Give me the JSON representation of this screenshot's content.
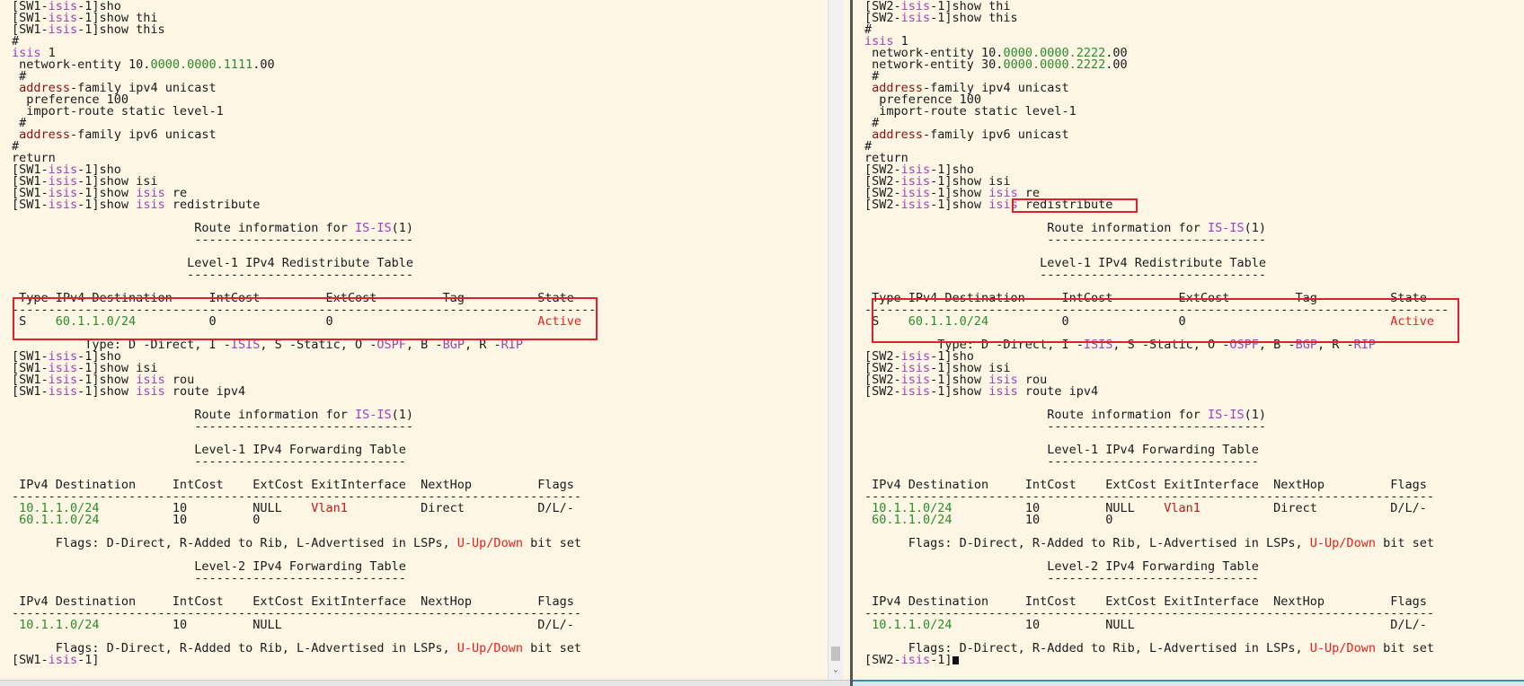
{
  "panes": [
    {
      "lines": [
        [
          "[SW1-",
          {
            "text": "isis",
            "color": "#9b44b8"
          },
          "-1]sho"
        ],
        [
          "[SW1-",
          {
            "text": "isis",
            "color": "#9b44b8"
          },
          "-1]show thi"
        ],
        [
          "[SW1-",
          {
            "text": "isis",
            "color": "#9b44b8"
          },
          "-1]show this"
        ],
        [
          "#"
        ],
        [
          {
            "text": "isis",
            "color": "#9b44b8"
          },
          " 1"
        ],
        [
          " network-entity 10.",
          {
            "text": "0000.0000.1111",
            "color": "#2a8c2a"
          },
          ".00"
        ],
        [
          " #"
        ],
        [
          " ",
          {
            "text": "address",
            "color": "#8b1010"
          },
          "-family ipv4 unicast"
        ],
        [
          "  preference 100"
        ],
        [
          "  import-route static level-1"
        ],
        [
          " #"
        ],
        [
          " ",
          {
            "text": "address",
            "color": "#8b1010"
          },
          "-family ipv6 unicast"
        ],
        [
          "#"
        ],
        [
          "return"
        ],
        [
          "[SW1-",
          {
            "text": "isis",
            "color": "#9b44b8"
          },
          "-1]sho"
        ],
        [
          "[SW1-",
          {
            "text": "isis",
            "color": "#9b44b8"
          },
          "-1]show isi"
        ],
        [
          "[SW1-",
          {
            "text": "isis",
            "color": "#9b44b8"
          },
          "-1]show ",
          {
            "text": "isis",
            "color": "#9b44b8"
          },
          " re"
        ],
        [
          "[SW1-",
          {
            "text": "isis",
            "color": "#9b44b8"
          },
          "-1]show ",
          {
            "text": "isis",
            "color": "#9b44b8"
          },
          " redistribute"
        ],
        [],
        [
          "                         Route information for ",
          {
            "text": "IS-IS",
            "color": "#9b44b8"
          },
          "(1)"
        ],
        [
          "                         ------------------------------"
        ],
        [],
        [
          "                        Level-1 IPv4 Redistribute Table"
        ],
        [
          "                        -------------------------------"
        ],
        [],
        [
          " Type IPv4 Destination     IntCost         ExtCost         Tag          State"
        ],
        [
          "--------------------------------------------------------------------------------"
        ],
        [
          " S    ",
          {
            "text": "60.1.1.0/24",
            "color": "#2a8c2a"
          },
          "          0               0                            ",
          {
            "text": "Active",
            "color": "#e8201c"
          }
        ],
        [],
        [
          "          Type: D -Direct, I -",
          {
            "text": "ISIS",
            "color": "#9b44b8"
          },
          ", S -Static, O -",
          {
            "text": "OSPF",
            "color": "#9b44b8"
          },
          ", B -",
          {
            "text": "BGP",
            "color": "#9b44b8"
          },
          ", R -",
          {
            "text": "RIP",
            "color": "#9b44b8"
          }
        ],
        [
          "[SW1-",
          {
            "text": "isis",
            "color": "#9b44b8"
          },
          "-1]sho"
        ],
        [
          "[SW1-",
          {
            "text": "isis",
            "color": "#9b44b8"
          },
          "-1]show isi"
        ],
        [
          "[SW1-",
          {
            "text": "isis",
            "color": "#9b44b8"
          },
          "-1]show ",
          {
            "text": "isis",
            "color": "#9b44b8"
          },
          " rou"
        ],
        [
          "[SW1-",
          {
            "text": "isis",
            "color": "#9b44b8"
          },
          "-1]show ",
          {
            "text": "isis",
            "color": "#9b44b8"
          },
          " route ipv4"
        ],
        [],
        [
          "                         Route information for ",
          {
            "text": "IS-IS",
            "color": "#9b44b8"
          },
          "(1)"
        ],
        [
          "                         ------------------------------"
        ],
        [],
        [
          "                         Level-1 IPv4 Forwarding Table"
        ],
        [
          "                         -----------------------------"
        ],
        [],
        [
          " IPv4 Destination     IntCost    ExtCost ExitInterface  NextHop         Flags"
        ],
        [
          "------------------------------------------------------------------------------"
        ],
        [
          " ",
          {
            "text": "10.1.1.0/24",
            "color": "#2a8c2a"
          },
          "          10         NULL    ",
          {
            "text": "Vlan1",
            "color": "#c01818"
          },
          "          Direct          D/L/-"
        ],
        [
          " ",
          {
            "text": "60.1.1.0/24",
            "color": "#2a8c2a"
          },
          "          10         0"
        ],
        [],
        [
          "      Flags: D-Direct, R-Added to Rib, L-Advertised in LSPs, ",
          {
            "text": "U-Up/Down",
            "color": "#e8201c"
          },
          " bit set"
        ],
        [],
        [
          "                         Level-2 IPv4 Forwarding Table"
        ],
        [
          "                         -----------------------------"
        ],
        [],
        [
          " IPv4 Destination     IntCost    ExtCost ExitInterface  NextHop         Flags"
        ],
        [
          "------------------------------------------------------------------------------"
        ],
        [
          " ",
          {
            "text": "10.1.1.0/24",
            "color": "#2a8c2a"
          },
          "          10         NULL                                   D/L/-"
        ],
        [],
        [
          "      Flags: D-Direct, R-Added to Rib, L-Advertised in LSPs, ",
          {
            "text": "U-Up/Down",
            "color": "#e8201c"
          },
          " bit set"
        ],
        [
          "[SW1-",
          {
            "text": "isis",
            "color": "#9b44b8"
          },
          "-1]"
        ]
      ]
    },
    {
      "lines": [
        [
          "[SW2-",
          {
            "text": "isis",
            "color": "#9b44b8"
          },
          "-1]show thi"
        ],
        [
          "[SW2-",
          {
            "text": "isis",
            "color": "#9b44b8"
          },
          "-1]show this"
        ],
        [
          "#"
        ],
        [
          {
            "text": "isis",
            "color": "#9b44b8"
          },
          " 1"
        ],
        [
          " network-entity 10.",
          {
            "text": "0000.0000.2222",
            "color": "#2a8c2a"
          },
          ".00"
        ],
        [
          " network-entity 30.",
          {
            "text": "0000.0000.2222",
            "color": "#2a8c2a"
          },
          ".00"
        ],
        [
          " #"
        ],
        [
          " ",
          {
            "text": "address",
            "color": "#8b1010"
          },
          "-family ipv4 unicast"
        ],
        [
          "  preference 100"
        ],
        [
          "  import-route static level-1"
        ],
        [
          " #"
        ],
        [
          " ",
          {
            "text": "address",
            "color": "#8b1010"
          },
          "-family ipv6 unicast"
        ],
        [
          "#"
        ],
        [
          "return"
        ],
        [
          "[SW2-",
          {
            "text": "isis",
            "color": "#9b44b8"
          },
          "-1]sho"
        ],
        [
          "[SW2-",
          {
            "text": "isis",
            "color": "#9b44b8"
          },
          "-1]show isi"
        ],
        [
          "[SW2-",
          {
            "text": "isis",
            "color": "#9b44b8"
          },
          "-1]show ",
          {
            "text": "isis",
            "color": "#9b44b8"
          },
          " re"
        ],
        [
          "[SW2-",
          {
            "text": "isis",
            "color": "#9b44b8"
          },
          "-1]show ",
          {
            "text": "isis",
            "color": "#9b44b8"
          },
          " redistribute"
        ],
        [],
        [
          "                         Route information for ",
          {
            "text": "IS-IS",
            "color": "#9b44b8"
          },
          "(1)"
        ],
        [
          "                         ------------------------------"
        ],
        [],
        [
          "                        Level-1 IPv4 Redistribute Table"
        ],
        [
          "                        -------------------------------"
        ],
        [],
        [
          " Type IPv4 Destination     IntCost         ExtCost         Tag          State"
        ],
        [
          "--------------------------------------------------------------------------------"
        ],
        [
          " S    ",
          {
            "text": "60.1.1.0/24",
            "color": "#2a8c2a"
          },
          "          0               0                            ",
          {
            "text": "Active",
            "color": "#e8201c"
          }
        ],
        [],
        [
          "          Type: D -Direct, I -",
          {
            "text": "ISIS",
            "color": "#9b44b8"
          },
          ", S -Static, O -",
          {
            "text": "OSPF",
            "color": "#9b44b8"
          },
          ", B -",
          {
            "text": "BGP",
            "color": "#9b44b8"
          },
          ", R -",
          {
            "text": "RIP",
            "color": "#9b44b8"
          }
        ],
        [
          "[SW2-",
          {
            "text": "isis",
            "color": "#9b44b8"
          },
          "-1]sho"
        ],
        [
          "[SW2-",
          {
            "text": "isis",
            "color": "#9b44b8"
          },
          "-1]show isi"
        ],
        [
          "[SW2-",
          {
            "text": "isis",
            "color": "#9b44b8"
          },
          "-1]show ",
          {
            "text": "isis",
            "color": "#9b44b8"
          },
          " rou"
        ],
        [
          "[SW2-",
          {
            "text": "isis",
            "color": "#9b44b8"
          },
          "-1]show ",
          {
            "text": "isis",
            "color": "#9b44b8"
          },
          " route ipv4"
        ],
        [],
        [
          "                         Route information for ",
          {
            "text": "IS-IS",
            "color": "#9b44b8"
          },
          "(1)"
        ],
        [
          "                         ------------------------------"
        ],
        [],
        [
          "                         Level-1 IPv4 Forwarding Table"
        ],
        [
          "                         -----------------------------"
        ],
        [],
        [
          " IPv4 Destination     IntCost    ExtCost ExitInterface  NextHop         Flags"
        ],
        [
          "------------------------------------------------------------------------------"
        ],
        [
          " ",
          {
            "text": "10.1.1.0/24",
            "color": "#2a8c2a"
          },
          "          10         NULL    ",
          {
            "text": "Vlan1",
            "color": "#c01818"
          },
          "          Direct          D/L/-"
        ],
        [
          " ",
          {
            "text": "60.1.1.0/24",
            "color": "#2a8c2a"
          },
          "          10         0"
        ],
        [],
        [
          "      Flags: D-Direct, R-Added to Rib, L-Advertised in LSPs, ",
          {
            "text": "U-Up/Down",
            "color": "#e8201c"
          },
          " bit set"
        ],
        [],
        [
          "                         Level-2 IPv4 Forwarding Table"
        ],
        [
          "                         -----------------------------"
        ],
        [],
        [
          " IPv4 Destination     IntCost    ExtCost ExitInterface  NextHop         Flags"
        ],
        [
          "------------------------------------------------------------------------------"
        ],
        [
          " ",
          {
            "text": "10.1.1.0/24",
            "color": "#2a8c2a"
          },
          "          10         NULL                                   D/L/-"
        ],
        [],
        [
          "      Flags: D-Direct, R-Added to Rib, L-Advertised in LSPs, ",
          {
            "text": "U-Up/Down",
            "color": "#e8201c"
          },
          " bit set"
        ],
        [
          "[SW2-",
          {
            "text": "isis",
            "color": "#9b44b8"
          },
          "-1]"
        ]
      ]
    }
  ]
}
